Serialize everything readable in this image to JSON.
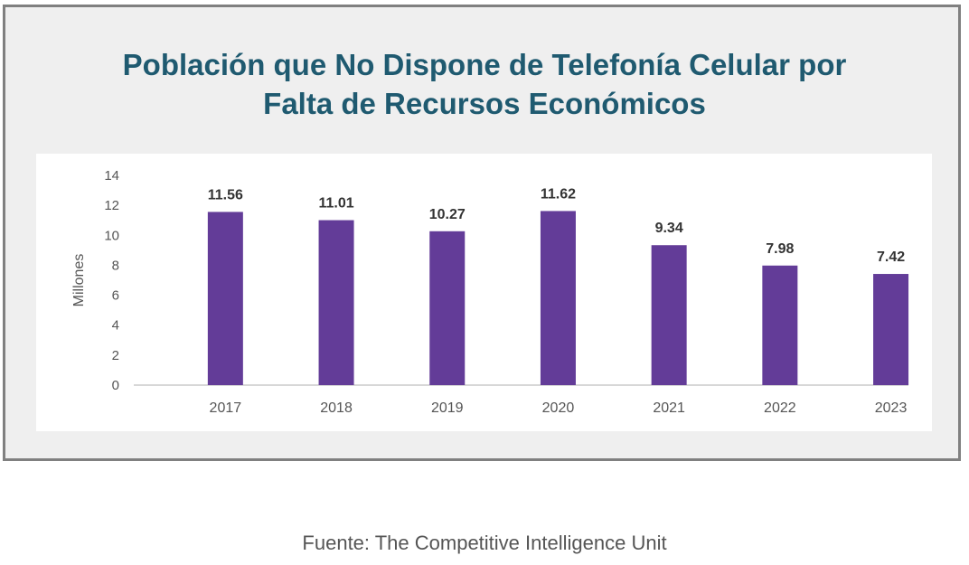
{
  "chart_data": {
    "type": "bar",
    "title_lines": [
      "Población que No Dispone de Telefonía Celular por",
      "Falta de Recursos Económicos"
    ],
    "ylabel": "Millones",
    "xlabel": "",
    "ylim": [
      0,
      14
    ],
    "yticks": [
      0,
      2,
      4,
      6,
      8,
      10,
      12,
      14
    ],
    "categories": [
      "2017",
      "2018",
      "2019",
      "2020",
      "2021",
      "2022",
      "2023"
    ],
    "values": [
      11.56,
      11.01,
      10.27,
      11.62,
      9.34,
      7.98,
      7.42
    ],
    "value_labels": [
      "11.56",
      "11.01",
      "10.27",
      "11.62",
      "9.34",
      "7.98",
      "7.42"
    ],
    "bar_color": "#633c98",
    "grid": false,
    "legend": "none"
  },
  "source": "Fuente: The Competitive Intelligence Unit"
}
